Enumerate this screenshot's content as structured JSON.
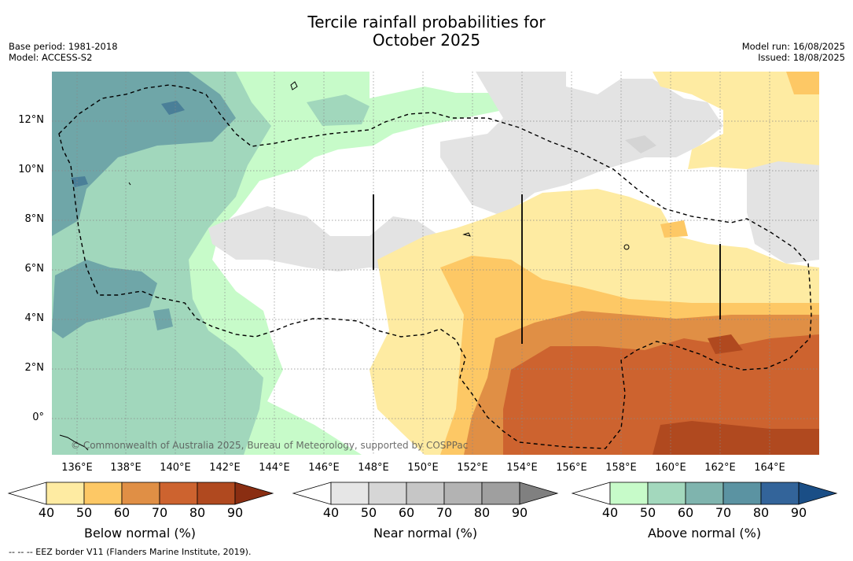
{
  "header": {
    "title_line1": "Tercile rainfall probabilities for",
    "title_line2": "October 2025",
    "base_period": "Base period: 1981-2018",
    "model": "Model: ACCESS-S2",
    "model_run": "Model run: 16/08/2025",
    "issued": "Issued: 18/08/2025"
  },
  "map": {
    "lat_labels": [
      "12°N",
      "10°N",
      "8°N",
      "6°N",
      "4°N",
      "2°N",
      "0°"
    ],
    "lon_labels": [
      "136°E",
      "138°E",
      "140°E",
      "142°E",
      "144°E",
      "146°E",
      "148°E",
      "150°E",
      "152°E",
      "154°E",
      "156°E",
      "158°E",
      "160°E",
      "162°E",
      "164°E"
    ],
    "copyright": "© Commonwealth of Australia 2025, Bureau of Meteorology, supported by COSPPac"
  },
  "colorbars": [
    {
      "label": "Below normal (%)",
      "ticks": [
        "40",
        "50",
        "60",
        "70",
        "80",
        "90"
      ],
      "colors": [
        "#ffffff",
        "#feeba2",
        "#fdc865",
        "#e08f45",
        "#cd632f",
        "#b0491f",
        "#8a2e12"
      ]
    },
    {
      "label": "Near normal (%)",
      "ticks": [
        "40",
        "50",
        "60",
        "70",
        "80",
        "90"
      ],
      "colors": [
        "#ffffff",
        "#e6e6e6",
        "#d6d6d6",
        "#c6c6c6",
        "#b3b3b3",
        "#9f9f9f",
        "#808080"
      ]
    },
    {
      "label": "Above normal (%)",
      "ticks": [
        "40",
        "50",
        "60",
        "70",
        "80",
        "90"
      ],
      "colors": [
        "#ffffff",
        "#c7fbc9",
        "#a3d8bd",
        "#7fb4ae",
        "#5b93a2",
        "#33649a",
        "#1a4e86"
      ]
    }
  ],
  "footer": {
    "eez_note": "--  --  -- EEZ border V11 (Flanders Marine Institute, 2019)."
  }
}
